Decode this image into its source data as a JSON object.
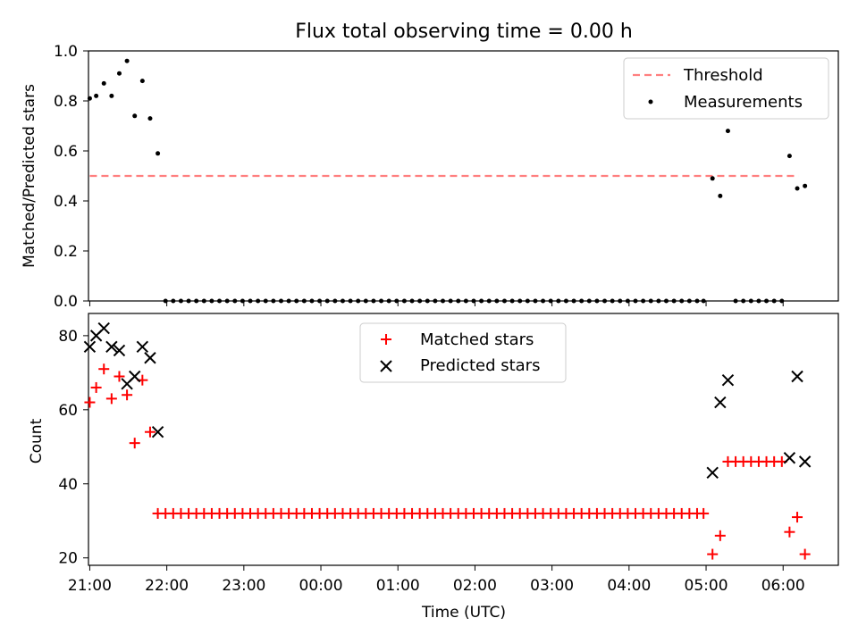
{
  "chart_data": [
    {
      "type": "scatter",
      "title": "Flux total observing time = 0.00 h",
      "xlabel": "",
      "ylabel": "Matched/Predicted stars",
      "ylim": [
        0,
        1.0
      ],
      "xlim": [
        "20:59",
        "06:43"
      ],
      "yticks": [
        "0.0",
        "0.2",
        "0.4",
        "0.6",
        "0.8",
        "1.0"
      ],
      "legend": {
        "placement": "top-right",
        "threshold_label": "Threshold",
        "measurements_label": "Measurements"
      },
      "threshold": {
        "value": 0.5,
        "x_start": "21:00",
        "x_end": "06:12"
      },
      "series": [
        {
          "name": "Measurements",
          "x": [
            "21:00",
            "21:05",
            "21:11",
            "21:17",
            "21:23",
            "21:29",
            "21:35",
            "21:41",
            "21:47",
            "21:53",
            "21:59",
            "22:05",
            "22:11",
            "22:17",
            "22:23",
            "22:29",
            "22:35",
            "22:41",
            "22:47",
            "22:53",
            "22:59",
            "23:05",
            "23:11",
            "23:17",
            "23:23",
            "23:29",
            "23:35",
            "23:41",
            "23:47",
            "23:53",
            "23:59",
            "00:05",
            "00:11",
            "00:17",
            "00:23",
            "00:29",
            "00:35",
            "00:41",
            "00:47",
            "00:53",
            "00:59",
            "01:05",
            "01:11",
            "01:17",
            "01:23",
            "01:29",
            "01:35",
            "01:41",
            "01:47",
            "01:53",
            "01:59",
            "02:05",
            "02:11",
            "02:17",
            "02:23",
            "02:29",
            "02:35",
            "02:41",
            "02:47",
            "02:53",
            "02:59",
            "03:05",
            "03:11",
            "03:17",
            "03:23",
            "03:29",
            "03:35",
            "03:41",
            "03:47",
            "03:53",
            "03:59",
            "04:05",
            "04:11",
            "04:17",
            "04:23",
            "04:29",
            "04:35",
            "04:41",
            "04:47",
            "04:53",
            "04:58",
            "05:05",
            "05:11",
            "05:17",
            "05:23",
            "05:29",
            "05:35",
            "05:41",
            "05:47",
            "05:53",
            "05:59",
            "06:05",
            "06:11",
            "06:17"
          ],
          "y": [
            0.81,
            0.82,
            0.87,
            0.82,
            0.91,
            0.96,
            0.74,
            0.88,
            0.73,
            0.59,
            0.0,
            0.0,
            0.0,
            0.0,
            0.0,
            0.0,
            0.0,
            0.0,
            0.0,
            0.0,
            0.0,
            0.0,
            0.0,
            0.0,
            0.0,
            0.0,
            0.0,
            0.0,
            0.0,
            0.0,
            0.0,
            0.0,
            0.0,
            0.0,
            0.0,
            0.0,
            0.0,
            0.0,
            0.0,
            0.0,
            0.0,
            0.0,
            0.0,
            0.0,
            0.0,
            0.0,
            0.0,
            0.0,
            0.0,
            0.0,
            0.0,
            0.0,
            0.0,
            0.0,
            0.0,
            0.0,
            0.0,
            0.0,
            0.0,
            0.0,
            0.0,
            0.0,
            0.0,
            0.0,
            0.0,
            0.0,
            0.0,
            0.0,
            0.0,
            0.0,
            0.0,
            0.0,
            0.0,
            0.0,
            0.0,
            0.0,
            0.0,
            0.0,
            0.0,
            0.0,
            0.0,
            0.49,
            0.42,
            0.68,
            0.0,
            0.0,
            0.0,
            0.0,
            0.0,
            0.0,
            0.0,
            0.58,
            0.45,
            0.46
          ]
        }
      ]
    },
    {
      "type": "scatter",
      "title": "",
      "xlabel": "Time (UTC)",
      "ylabel": "Count",
      "ylim": [
        18,
        86
      ],
      "xlim": [
        "20:59",
        "06:43"
      ],
      "xticks": [
        "21:00",
        "22:00",
        "23:00",
        "00:00",
        "01:00",
        "02:00",
        "03:00",
        "04:00",
        "05:00",
        "06:00"
      ],
      "yticks": [
        "20",
        "40",
        "60",
        "80"
      ],
      "legend": {
        "placement": "top-center"
      },
      "series": [
        {
          "name": "Matched stars",
          "color": "#ff0000",
          "marker": "plus",
          "points": [
            [
              "21:00",
              62
            ],
            [
              "21:05",
              66
            ],
            [
              "21:11",
              71
            ],
            [
              "21:17",
              63
            ],
            [
              "21:23",
              69
            ],
            [
              "21:29",
              64
            ],
            [
              "21:35",
              51
            ],
            [
              "21:41",
              68
            ],
            [
              "21:47",
              54
            ],
            [
              "21:53",
              32
            ],
            [
              "21:59",
              32
            ],
            [
              "22:05",
              32
            ],
            [
              "22:11",
              32
            ],
            [
              "22:17",
              32
            ],
            [
              "22:23",
              32
            ],
            [
              "22:29",
              32
            ],
            [
              "22:35",
              32
            ],
            [
              "22:41",
              32
            ],
            [
              "22:47",
              32
            ],
            [
              "22:53",
              32
            ],
            [
              "22:59",
              32
            ],
            [
              "23:05",
              32
            ],
            [
              "23:11",
              32
            ],
            [
              "23:17",
              32
            ],
            [
              "23:23",
              32
            ],
            [
              "23:29",
              32
            ],
            [
              "23:35",
              32
            ],
            [
              "23:41",
              32
            ],
            [
              "23:47",
              32
            ],
            [
              "23:53",
              32
            ],
            [
              "23:59",
              32
            ],
            [
              "00:05",
              32
            ],
            [
              "00:11",
              32
            ],
            [
              "00:17",
              32
            ],
            [
              "00:23",
              32
            ],
            [
              "00:29",
              32
            ],
            [
              "00:35",
              32
            ],
            [
              "00:41",
              32
            ],
            [
              "00:47",
              32
            ],
            [
              "00:53",
              32
            ],
            [
              "00:59",
              32
            ],
            [
              "01:05",
              32
            ],
            [
              "01:11",
              32
            ],
            [
              "01:17",
              32
            ],
            [
              "01:23",
              32
            ],
            [
              "01:29",
              32
            ],
            [
              "01:35",
              32
            ],
            [
              "01:41",
              32
            ],
            [
              "01:47",
              32
            ],
            [
              "01:53",
              32
            ],
            [
              "01:59",
              32
            ],
            [
              "02:05",
              32
            ],
            [
              "02:11",
              32
            ],
            [
              "02:17",
              32
            ],
            [
              "02:23",
              32
            ],
            [
              "02:29",
              32
            ],
            [
              "02:35",
              32
            ],
            [
              "02:41",
              32
            ],
            [
              "02:47",
              32
            ],
            [
              "02:53",
              32
            ],
            [
              "02:59",
              32
            ],
            [
              "03:05",
              32
            ],
            [
              "03:11",
              32
            ],
            [
              "03:17",
              32
            ],
            [
              "03:23",
              32
            ],
            [
              "03:29",
              32
            ],
            [
              "03:35",
              32
            ],
            [
              "03:41",
              32
            ],
            [
              "03:47",
              32
            ],
            [
              "03:53",
              32
            ],
            [
              "03:59",
              32
            ],
            [
              "04:05",
              32
            ],
            [
              "04:11",
              32
            ],
            [
              "04:17",
              32
            ],
            [
              "04:23",
              32
            ],
            [
              "04:29",
              32
            ],
            [
              "04:35",
              32
            ],
            [
              "04:41",
              32
            ],
            [
              "04:47",
              32
            ],
            [
              "04:53",
              32
            ],
            [
              "04:58",
              32
            ],
            [
              "05:05",
              21
            ],
            [
              "05:11",
              26
            ],
            [
              "05:17",
              46
            ],
            [
              "05:23",
              46
            ],
            [
              "05:29",
              46
            ],
            [
              "05:35",
              46
            ],
            [
              "05:41",
              46
            ],
            [
              "05:47",
              46
            ],
            [
              "05:53",
              46
            ],
            [
              "05:59",
              46
            ],
            [
              "06:05",
              27
            ],
            [
              "06:11",
              31
            ],
            [
              "06:17",
              21
            ]
          ]
        },
        {
          "name": "Predicted stars",
          "color": "#000000",
          "marker": "x",
          "points": [
            [
              "21:00",
              77
            ],
            [
              "21:05",
              80
            ],
            [
              "21:11",
              82
            ],
            [
              "21:17",
              77
            ],
            [
              "21:23",
              76
            ],
            [
              "21:29",
              67
            ],
            [
              "21:35",
              69
            ],
            [
              "21:41",
              77
            ],
            [
              "21:47",
              74
            ],
            [
              "21:53",
              54
            ],
            [
              "05:05",
              43
            ],
            [
              "05:11",
              62
            ],
            [
              "05:17",
              68
            ],
            [
              "06:05",
              47
            ],
            [
              "06:11",
              69
            ],
            [
              "06:17",
              46
            ]
          ]
        }
      ]
    }
  ]
}
